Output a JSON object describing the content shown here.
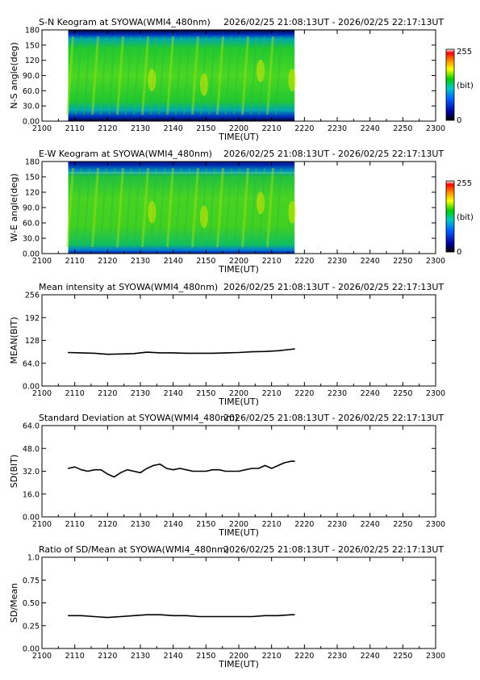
{
  "station": "SYOWA",
  "time_range": "2026/02/25 21:08:13UT - 2026/02/25 22:17:13UT",
  "data_span": {
    "start": "2108",
    "end": "2217"
  },
  "time_axis": {
    "label": "TIME(UT)",
    "ticks": [
      "2100",
      "2110",
      "2120",
      "2130",
      "2140",
      "2150",
      "2200",
      "2210",
      "2220",
      "2230",
      "2240",
      "2250",
      "2300"
    ]
  },
  "colorbar": {
    "max": "255",
    "min": "0",
    "unit": "(bit)"
  },
  "panels": [
    {
      "title": "S-N Keogram at SYOWA(WMI4_480nm)",
      "ylabel": "N-S angle(deg)",
      "ticks": [
        "0.00",
        "30.0",
        "60.0",
        "90.0",
        "120",
        "150",
        "180"
      ]
    },
    {
      "title": "E-W Keogram at SYOWA(WMI4_480nm)",
      "ylabel": "W-E angle(deg)",
      "ticks": [
        "0.00",
        "30.0",
        "60.0",
        "90.0",
        "120",
        "150",
        "180"
      ]
    },
    {
      "title": "Mean intensity at SYOWA(WMI4_480nm)",
      "ylabel": "MEAN(BIT)",
      "ticks": [
        "0.00",
        "64.0",
        "128",
        "192",
        "256"
      ]
    },
    {
      "title": "Standard Deviation at SYOWA(WMI4_480nm)",
      "ylabel": "SD(BIT)",
      "ticks": [
        "0.00",
        "16.0",
        "32.0",
        "48.0",
        "64.0"
      ]
    },
    {
      "title": "Ratio of SD/Mean at SYOWA(WMI4_480nm)",
      "ylabel": "SD/Mean",
      "ticks": [
        "0.00",
        "0.25",
        "0.50",
        "0.75",
        "1.0"
      ]
    }
  ],
  "chart_data": [
    {
      "type": "heatmap",
      "title": "S-N Keogram at SYOWA(WMI4_480nm)",
      "xlabel": "TIME(UT)",
      "ylabel": "N-S angle(deg)",
      "xlim": [
        "2100",
        "2300"
      ],
      "ylim": [
        0,
        180
      ],
      "data_time_range": [
        "2108",
        "2217"
      ],
      "colorbar_range": [
        0,
        255
      ],
      "colormap": "rainbow"
    },
    {
      "type": "heatmap",
      "title": "E-W Keogram at SYOWA(WMI4_480nm)",
      "xlabel": "TIME(UT)",
      "ylabel": "W-E angle(deg)",
      "xlim": [
        "2100",
        "2300"
      ],
      "ylim": [
        0,
        180
      ],
      "data_time_range": [
        "2108",
        "2217"
      ],
      "colorbar_range": [
        0,
        255
      ],
      "colormap": "rainbow"
    },
    {
      "type": "line",
      "title": "Mean intensity at SYOWA(WMI4_480nm)",
      "xlabel": "TIME(UT)",
      "ylabel": "MEAN(BIT)",
      "ylim": [
        0,
        256
      ],
      "x": [
        "2108",
        "2112",
        "2116",
        "2120",
        "2124",
        "2128",
        "2132",
        "2136",
        "2140",
        "2144",
        "2148",
        "2152",
        "2156",
        "2200",
        "2204",
        "2208",
        "2212",
        "2216",
        "2217"
      ],
      "values": [
        94,
        93,
        92,
        89,
        90,
        91,
        95,
        93,
        93,
        92,
        92,
        92,
        93,
        94,
        96,
        97,
        99,
        103,
        104
      ]
    },
    {
      "type": "line",
      "title": "Standard Deviation at SYOWA(WMI4_480nm)",
      "xlabel": "TIME(UT)",
      "ylabel": "SD(BIT)",
      "ylim": [
        0,
        64
      ],
      "x": [
        "2108",
        "2110",
        "2112",
        "2114",
        "2116",
        "2118",
        "2120",
        "2122",
        "2124",
        "2126",
        "2128",
        "2130",
        "2132",
        "2134",
        "2136",
        "2138",
        "2140",
        "2142",
        "2144",
        "2146",
        "2148",
        "2150",
        "2152",
        "2154",
        "2156",
        "2158",
        "2200",
        "2202",
        "2204",
        "2206",
        "2208",
        "2210",
        "2212",
        "2214",
        "2216",
        "2217"
      ],
      "values": [
        34,
        35,
        33,
        32,
        33,
        33,
        30,
        28,
        31,
        33,
        32,
        31,
        34,
        36,
        37,
        34,
        33,
        34,
        33,
        32,
        32,
        32,
        33,
        33,
        32,
        32,
        32,
        33,
        34,
        34,
        36,
        34,
        36,
        38,
        39,
        39
      ]
    },
    {
      "type": "line",
      "title": "Ratio of SD/Mean at SYOWA(WMI4_480nm)",
      "xlabel": "TIME(UT)",
      "ylabel": "SD/Mean",
      "ylim": [
        0,
        1.0
      ],
      "x": [
        "2108",
        "2112",
        "2116",
        "2120",
        "2124",
        "2128",
        "2132",
        "2136",
        "2140",
        "2144",
        "2148",
        "2152",
        "2156",
        "2200",
        "2204",
        "2208",
        "2212",
        "2216",
        "2217"
      ],
      "values": [
        0.36,
        0.36,
        0.35,
        0.34,
        0.35,
        0.36,
        0.37,
        0.37,
        0.36,
        0.36,
        0.35,
        0.35,
        0.35,
        0.35,
        0.35,
        0.36,
        0.36,
        0.37,
        0.37
      ]
    }
  ]
}
